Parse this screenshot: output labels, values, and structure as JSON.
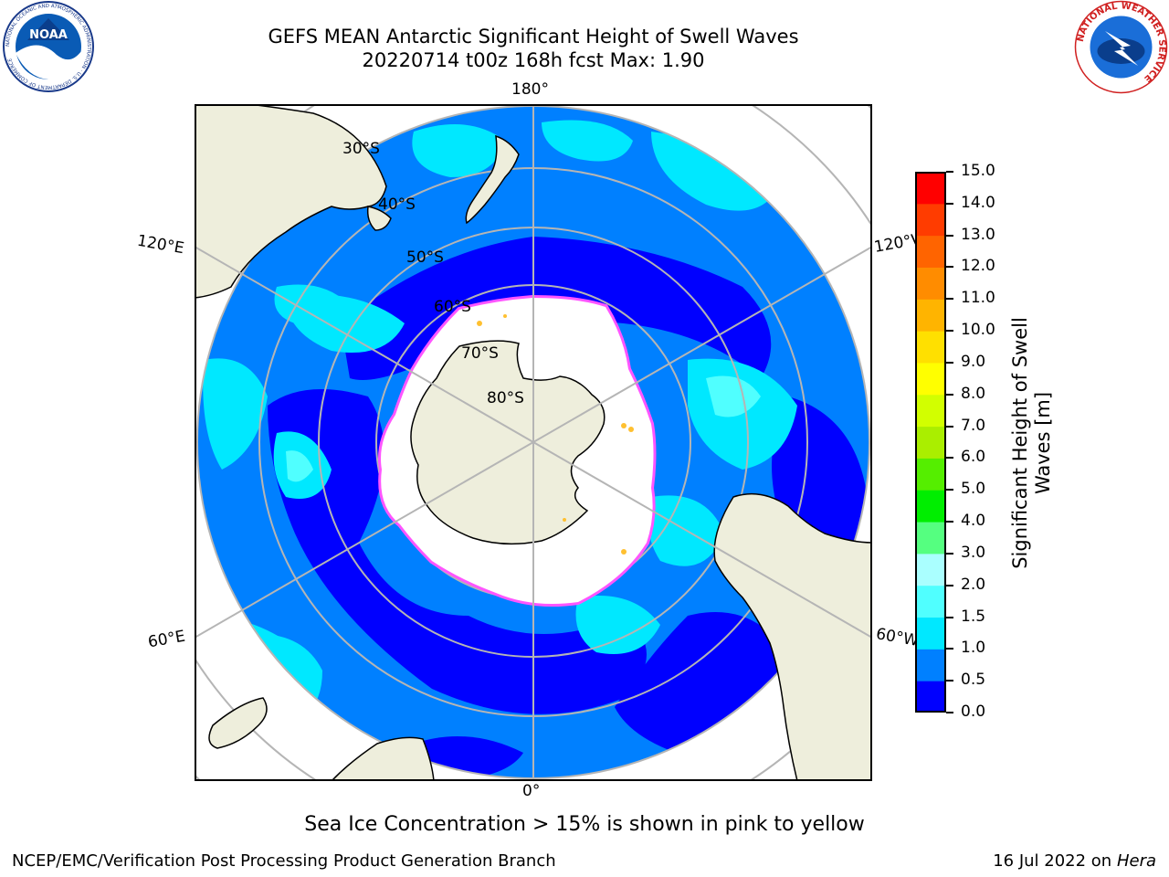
{
  "header": {
    "title_line1": "GEFS MEAN Antarctic Significant Height of Swell Waves",
    "title_line2": "20220714 t00z 168h fcst   Max: 1.90"
  },
  "logos": {
    "noaa_text": "NOAA",
    "noaa_ring_text": "NATIONAL OCEANIC AND ATMOSPHERIC ADMINISTRATION · U.S. DEPARTMENT OF COMMERCE",
    "nws_ring_text": "NATIONAL WEATHER SERVICE"
  },
  "map": {
    "longitude_labels": {
      "top": "180°",
      "bottom": "0°",
      "upper_left": "120°E",
      "lower_left": "60°E",
      "upper_right": "120°W",
      "lower_right": "60°W"
    },
    "latitude_labels": [
      "30°S",
      "40°S",
      "50°S",
      "60°S",
      "70°S",
      "80°S"
    ],
    "colors": {
      "land": "#eeeedc",
      "ice": "#ffffff",
      "coast": "#000000",
      "grid": "#b5b5b5"
    }
  },
  "colorbar": {
    "label_line1": "Significant Height of Swell",
    "label_line2": "Waves [m]",
    "ticks": [
      "0.0",
      "0.5",
      "1.0",
      "1.5",
      "2.0",
      "3.0",
      "4.0",
      "5.0",
      "6.0",
      "7.0",
      "8.0",
      "9.0",
      "10.0",
      "11.0",
      "12.0",
      "13.0",
      "14.0",
      "15.0"
    ],
    "colors": [
      "#0000ff",
      "#0080ff",
      "#00e8ff",
      "#50ffff",
      "#aaffff",
      "#55ff80",
      "#00ee00",
      "#55ee00",
      "#aaee00",
      "#d2ff00",
      "#ffff00",
      "#ffe000",
      "#ffb400",
      "#ff8c00",
      "#ff6400",
      "#ff3c00",
      "#ff0000"
    ]
  },
  "footer": {
    "note": "Sea Ice Concentration > 15% is shown in pink to yellow",
    "credit": "NCEP/EMC/Verification Post Processing Product Generation Branch",
    "date": "16 Jul 2022 on",
    "host": "Hera"
  }
}
